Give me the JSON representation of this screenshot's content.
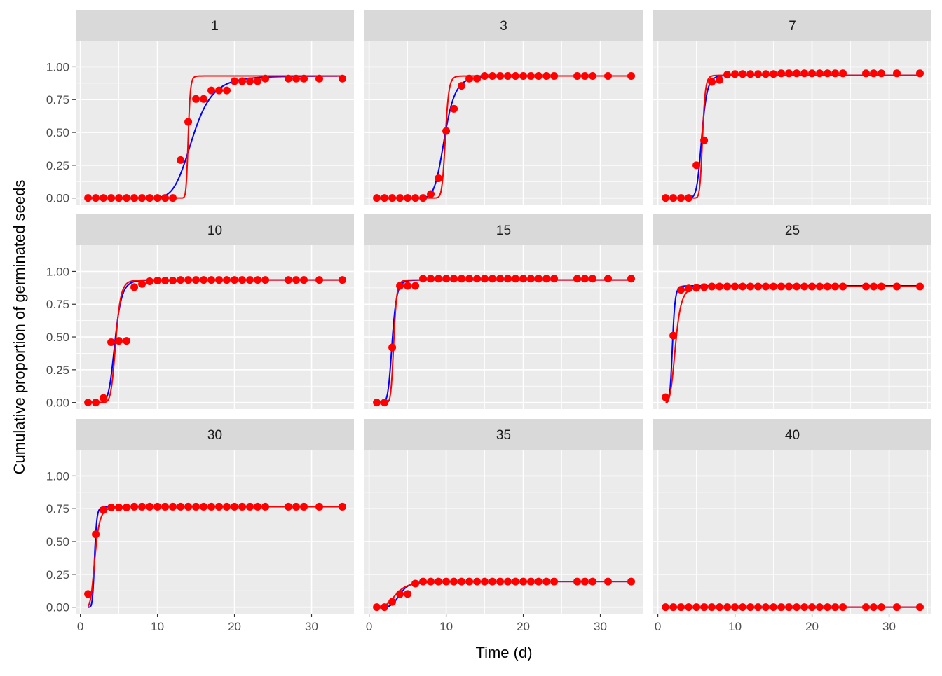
{
  "chart_data": {
    "type": "scatter",
    "xlabel": "Time (d)",
    "ylabel": "Cumulative proportion of germinated seeds",
    "xlim": [
      -0.6,
      35.5
    ],
    "ylim": [
      -0.05,
      1.2
    ],
    "x_ticks": [
      0,
      10,
      20,
      30
    ],
    "y_ticks": [
      0.0,
      0.25,
      0.5,
      0.75,
      1.0
    ],
    "y_tick_labels": [
      "0.00",
      "0.25",
      "0.50",
      "0.75",
      "1.00"
    ],
    "grid": true,
    "layout": "3x3 facets",
    "colors": {
      "panel_bg": "#EBEBEB",
      "strip_bg": "#D9D9D9",
      "grid": "#FFFFFF",
      "points": "#FF0000",
      "red_curve": "#FF0000",
      "blue_curve": "#0000FF",
      "axis_text": "#4D4D4D",
      "strip_text": "#1A1A1A"
    },
    "times": [
      1,
      2,
      3,
      4,
      5,
      6,
      7,
      8,
      9,
      10,
      11,
      12,
      13,
      14,
      15,
      16,
      17,
      18,
      19,
      20,
      21,
      22,
      23,
      24,
      27,
      28,
      29,
      31,
      34
    ],
    "panels": [
      {
        "label": "1",
        "values": [
          0,
          0,
          0,
          0,
          0,
          0,
          0,
          0,
          0,
          0,
          0,
          0,
          0.29,
          0.58,
          0.755,
          0.755,
          0.82,
          0.82,
          0.82,
          0.89,
          0.89,
          0.89,
          0.89,
          0.91,
          0.91,
          0.91,
          0.91,
          0.91,
          0.91
        ],
        "red_curve": {
          "max": 0.93,
          "t50": 14.0,
          "slope": 11,
          "t0": 12.5
        },
        "blue_curve": {
          "max": 0.93,
          "t50": 14.6,
          "slope": 5.5,
          "t0": 7.5
        }
      },
      {
        "label": "3",
        "values": [
          0,
          0,
          0,
          0,
          0,
          0,
          0,
          0.03,
          0.15,
          0.51,
          0.68,
          0.855,
          0.91,
          0.91,
          0.93,
          0.93,
          0.93,
          0.93,
          0.93,
          0.93,
          0.93,
          0.93,
          0.93,
          0.93,
          0.93,
          0.93,
          0.93,
          0.93,
          0.93
        ],
        "red_curve": {
          "max": 0.93,
          "t50": 9.9,
          "slope": 13,
          "t0": 7.0
        },
        "blue_curve": {
          "max": 0.93,
          "t50": 9.8,
          "slope": 7,
          "t0": 5.0
        }
      },
      {
        "label": "7",
        "values": [
          0,
          0,
          0,
          0,
          0.25,
          0.44,
          0.885,
          0.9,
          0.94,
          0.945,
          0.945,
          0.945,
          0.945,
          0.945,
          0.945,
          0.95,
          0.95,
          0.95,
          0.95,
          0.95,
          0.95,
          0.95,
          0.95,
          0.95,
          0.95,
          0.95,
          0.95,
          0.95,
          0.95
        ],
        "red_curve": {
          "max": 0.935,
          "t50": 5.8,
          "slope": 10,
          "t0": 4.0
        },
        "blue_curve": {
          "max": 0.935,
          "t50": 5.7,
          "slope": 8,
          "t0": 3.0
        }
      },
      {
        "label": "10",
        "values": [
          0,
          0,
          0.035,
          0.46,
          0.47,
          0.47,
          0.88,
          0.905,
          0.925,
          0.93,
          0.93,
          0.93,
          0.935,
          0.935,
          0.935,
          0.935,
          0.935,
          0.935,
          0.935,
          0.935,
          0.935,
          0.935,
          0.935,
          0.935,
          0.935,
          0.935,
          0.935,
          0.935,
          0.935
        ],
        "red_curve": {
          "max": 0.935,
          "t50": 4.6,
          "slope": 8,
          "t0": 2.0
        },
        "blue_curve": {
          "max": 0.935,
          "t50": 4.5,
          "slope": 7,
          "t0": 1.5
        }
      },
      {
        "label": "15",
        "values": [
          0,
          0,
          0.42,
          0.89,
          0.89,
          0.89,
          0.945,
          0.945,
          0.945,
          0.945,
          0.945,
          0.945,
          0.945,
          0.945,
          0.945,
          0.945,
          0.945,
          0.945,
          0.945,
          0.945,
          0.945,
          0.945,
          0.945,
          0.945,
          0.945,
          0.945,
          0.945,
          0.945,
          0.945
        ],
        "red_curve": {
          "max": 0.935,
          "t50": 3.2,
          "slope": 9,
          "t0": 1.5
        },
        "blue_curve": {
          "max": 0.935,
          "t50": 3.0,
          "slope": 7,
          "t0": 1.0
        }
      },
      {
        "label": "25",
        "values": [
          0.04,
          0.51,
          0.86,
          0.87,
          0.875,
          0.88,
          0.885,
          0.885,
          0.885,
          0.885,
          0.885,
          0.885,
          0.885,
          0.885,
          0.885,
          0.885,
          0.885,
          0.885,
          0.885,
          0.885,
          0.885,
          0.885,
          0.885,
          0.885,
          0.885,
          0.885,
          0.885,
          0.885,
          0.885
        ],
        "red_curve": {
          "max": 0.885,
          "t50": 2.3,
          "slope": 5,
          "t0": 0.5
        },
        "blue_curve": {
          "max": 0.89,
          "t50": 1.9,
          "slope": 9,
          "t0": 0.4
        }
      },
      {
        "label": "30",
        "values": [
          0.1,
          0.555,
          0.74,
          0.76,
          0.76,
          0.76,
          0.765,
          0.765,
          0.765,
          0.765,
          0.765,
          0.765,
          0.765,
          0.765,
          0.765,
          0.765,
          0.765,
          0.765,
          0.765,
          0.765,
          0.765,
          0.765,
          0.765,
          0.765,
          0.765,
          0.765,
          0.765,
          0.765,
          0.765
        ],
        "red_curve": {
          "max": 0.765,
          "t50": 1.9,
          "slope": 5,
          "t0": 0.4
        },
        "blue_curve": {
          "max": 0.765,
          "t50": 1.85,
          "slope": 9,
          "t0": 0.6
        }
      },
      {
        "label": "35",
        "values": [
          0,
          0,
          0.04,
          0.1,
          0.1,
          0.18,
          0.195,
          0.195,
          0.195,
          0.195,
          0.195,
          0.195,
          0.195,
          0.195,
          0.195,
          0.195,
          0.195,
          0.195,
          0.195,
          0.195,
          0.195,
          0.195,
          0.195,
          0.195,
          0.195,
          0.195,
          0.195,
          0.195,
          0.195
        ],
        "red_curve": {
          "max": 0.195,
          "t50": 3.5,
          "slope": 4,
          "t0": 0.5
        },
        "blue_curve": {
          "max": 0.195,
          "t50": 4.0,
          "slope": 6,
          "t0": 0.5
        }
      },
      {
        "label": "40",
        "values": [
          0,
          0,
          0,
          0,
          0,
          0,
          0,
          0,
          0,
          0,
          0,
          0,
          0,
          0,
          0,
          0,
          0,
          0,
          0,
          0,
          0,
          0,
          0,
          0,
          0,
          0,
          0,
          0,
          0
        ],
        "red_curve": {
          "max": 0.0,
          "t50": 5.0,
          "slope": 4,
          "t0": 0.5
        },
        "blue_curve": {
          "max": 0.0,
          "t50": 5.0,
          "slope": 4,
          "t0": 0.5
        }
      }
    ]
  }
}
